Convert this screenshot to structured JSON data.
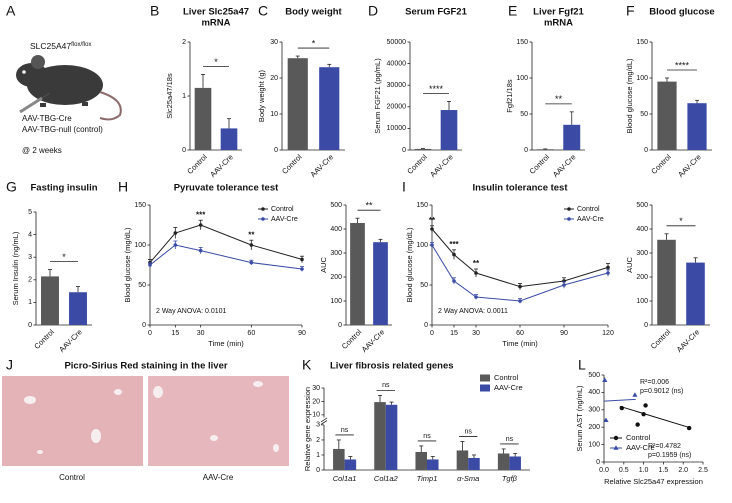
{
  "schematic": {
    "panel": "A",
    "strain": "SLC25A47",
    "strain_sup": "flox/flox",
    "treatments": [
      "AAV-TBG-Cre",
      "AAV-TBG-null (control)"
    ],
    "timepoint": "@ 2 weeks"
  },
  "histology": {
    "panel": "J",
    "title": "Picro-Sirius Red staining in the liver",
    "images": [
      "Control",
      "AAV-Cre"
    ]
  },
  "chart_data": [
    {
      "type": "bar",
      "panel": "B",
      "title": [
        "Liver Slc25a47",
        "mRNA"
      ],
      "ylabel": "Slc25a47/18s",
      "categories": [
        "Control",
        "AAV-Cre"
      ],
      "values": [
        1.15,
        0.4
      ],
      "errors": [
        0.25,
        0.18
      ],
      "colors": [
        "#595959",
        "#3b4ba5"
      ],
      "ylim": [
        0,
        2
      ],
      "yticks": [
        0,
        1,
        2
      ],
      "significance": "*"
    },
    {
      "type": "bar",
      "panel": "C",
      "title": [
        "Body weight"
      ],
      "ylabel": "Body weight (g)",
      "categories": [
        "Control",
        "AAV-Cre"
      ],
      "values": [
        25.5,
        23
      ],
      "errors": [
        0.6,
        0.8
      ],
      "colors": [
        "#595959",
        "#3b4ba5"
      ],
      "ylim": [
        0,
        30
      ],
      "yticks": [
        0,
        10,
        20,
        30
      ],
      "significance": "*"
    },
    {
      "type": "bar",
      "panel": "D",
      "title": [
        "Serum FGF21"
      ],
      "ylabel": "Serum FGF21 (pg/mL)",
      "categories": [
        "Control",
        "AAV-Cre"
      ],
      "values": [
        500,
        18500
      ],
      "errors": [
        150,
        4000
      ],
      "colors": [
        "#595959",
        "#3b4ba5"
      ],
      "ylim": [
        0,
        50000
      ],
      "yticks": [
        0,
        10000,
        20000,
        30000,
        40000,
        50000
      ],
      "significance": "****"
    },
    {
      "type": "bar",
      "panel": "E",
      "title": [
        "Liver Fgf21",
        "mRNA"
      ],
      "ylabel": "Fgf21/18s",
      "categories": [
        "Control",
        "AAV-Cre"
      ],
      "values": [
        1,
        35
      ],
      "errors": [
        0.5,
        18
      ],
      "colors": [
        "#595959",
        "#3b4ba5"
      ],
      "ylim": [
        0,
        150
      ],
      "yticks": [
        0,
        50,
        100,
        150
      ],
      "significance": "**"
    },
    {
      "type": "bar",
      "panel": "F",
      "title": [
        "Blood glucose"
      ],
      "ylabel": "Blood glucose (mg/dL)",
      "categories": [
        "Control",
        "AAV-Cre"
      ],
      "values": [
        95,
        65
      ],
      "errors": [
        5,
        4
      ],
      "colors": [
        "#595959",
        "#3b4ba5"
      ],
      "ylim": [
        0,
        150
      ],
      "yticks": [
        0,
        50,
        100,
        150
      ],
      "significance": "****"
    },
    {
      "type": "bar",
      "panel": "G",
      "title": [
        "Fasting insulin"
      ],
      "ylabel": "Serum Insulin (ng/mL)",
      "categories": [
        "Control",
        "AAV-Cre"
      ],
      "values": [
        2.15,
        1.45
      ],
      "errors": [
        0.3,
        0.25
      ],
      "colors": [
        "#595959",
        "#3b4ba5"
      ],
      "ylim": [
        0,
        5
      ],
      "yticks": [
        0,
        1,
        2,
        3,
        4,
        5
      ],
      "significance": "*"
    },
    {
      "type": "line",
      "panel": "H",
      "title": [
        "Pyruvate tolerance test"
      ],
      "xlabel": "Time (min)",
      "ylabel": "Blood glucose (mg/dL)",
      "x": [
        0,
        15,
        30,
        60,
        90
      ],
      "xlim": [
        0,
        90
      ],
      "xticks": [
        0,
        15,
        30,
        60,
        90
      ],
      "ylim": [
        0,
        150
      ],
      "yticks": [
        0,
        50,
        100,
        150
      ],
      "series": [
        {
          "name": "Control",
          "color": "#222222",
          "values": [
            78,
            115,
            125,
            100,
            82
          ],
          "errors": [
            4,
            7,
            6,
            6,
            4
          ]
        },
        {
          "name": "AAV-Cre",
          "color": "#3b4ba5",
          "values": [
            75,
            100,
            93,
            78,
            70
          ],
          "errors": [
            3,
            5,
            4,
            3,
            3
          ]
        }
      ],
      "significance": [
        null,
        null,
        "***",
        "**",
        null
      ],
      "anova": "2 Way ANOVA: 0.0101"
    },
    {
      "type": "bar",
      "ylabel": "AUC",
      "categories": [
        "Control",
        "AAV-Cre"
      ],
      "values": [
        425,
        345
      ],
      "errors": [
        20,
        12
      ],
      "colors": [
        "#595959",
        "#3b4ba5"
      ],
      "ylim": [
        0,
        500
      ],
      "yticks": [
        0,
        100,
        200,
        300,
        400,
        500
      ],
      "significance": "**"
    },
    {
      "type": "line",
      "panel": "I",
      "title": [
        "Insulin tolerance test"
      ],
      "xlabel": "Time (min)",
      "ylabel": "Blood glucose (mg/dL)",
      "x": [
        0,
        15,
        30,
        60,
        90,
        120
      ],
      "xlim": [
        0,
        120
      ],
      "xticks": [
        0,
        15,
        30,
        60,
        90,
        120
      ],
      "ylim": [
        0,
        150
      ],
      "yticks": [
        0,
        50,
        100,
        150
      ],
      "series": [
        {
          "name": "Control",
          "color": "#222222",
          "values": [
            120,
            88,
            65,
            48,
            55,
            72
          ],
          "errors": [
            4,
            6,
            5,
            4,
            4,
            5
          ]
        },
        {
          "name": "AAV-Cre",
          "color": "#3b4ba5",
          "values": [
            100,
            55,
            35,
            30,
            50,
            65
          ],
          "errors": [
            3,
            4,
            3,
            3,
            4,
            4
          ]
        }
      ],
      "significance": [
        "**",
        "***",
        "**",
        null,
        null,
        null
      ],
      "anova": "2 Way ANOVA: 0.0011"
    },
    {
      "type": "bar",
      "ylabel": "AUC",
      "categories": [
        "Control",
        "AAV-Cre"
      ],
      "values": [
        355,
        260
      ],
      "errors": [
        25,
        20
      ],
      "colors": [
        "#595959",
        "#3b4ba5"
      ],
      "ylim": [
        0,
        500
      ],
      "yticks": [
        0,
        100,
        200,
        300,
        400,
        500
      ],
      "significance": "*"
    },
    {
      "type": "grouped_bar",
      "panel": "K",
      "title": [
        "Liver fibrosis related genes"
      ],
      "ylabel": "Relative gene expression",
      "categories": [
        "Col1a1",
        "Col1a2",
        "Timp1",
        "α-Sma",
        "Tgfβ"
      ],
      "series": [
        {
          "name": "Control",
          "color": "#595959",
          "values": [
            1.4,
            19.5,
            1.2,
            1.3,
            1.1
          ],
          "errors": [
            0.6,
            5,
            0.4,
            0.6,
            0.3
          ]
        },
        {
          "name": "AAV-Cre",
          "color": "#3b4ba5",
          "values": [
            0.7,
            17.5,
            0.7,
            0.8,
            0.9
          ],
          "errors": [
            0.2,
            2,
            0.2,
            0.2,
            0.2
          ]
        }
      ],
      "ylim": [
        0,
        3
      ],
      "yticks": [
        0,
        1,
        2,
        3
      ],
      "ylim_upper": [
        8,
        30
      ],
      "yticks_upper": [
        10,
        20,
        30
      ],
      "axis_break": true,
      "significance": [
        "ns",
        "ns",
        "ns",
        "ns",
        "ns"
      ]
    },
    {
      "type": "scatter",
      "panel": "L",
      "xlabel": "Relative Slc25a47 expression",
      "ylabel": "Serum AST (ng/mL)",
      "xlim": [
        0,
        2.5
      ],
      "xticks": [
        {
          "value": 0,
          "label": "0.0"
        },
        0.5,
        {
          "value": 1,
          "label": "1.0"
        },
        1.5,
        {
          "value": 2,
          "label": "2.0"
        },
        2.5
      ],
      "ylim": [
        0,
        500
      ],
      "yticks": [
        0,
        100,
        200,
        300,
        400,
        500
      ],
      "legend": "lower left",
      "series": [
        {
          "name": "Control",
          "color": "#111111",
          "marker": "circle",
          "x": [
            0.45,
            0.85,
            1.0,
            1.05,
            2.15
          ],
          "values": [
            310,
            215,
            275,
            325,
            195
          ],
          "trend": {
            "x": [
              0.4,
              2.2
            ],
            "y": [
              320,
              195
            ]
          },
          "stats": [
            "R²=0.4782",
            "p=0.1959 (ns)"
          ]
        },
        {
          "name": "AAV-Cre",
          "color": "#3b4ba5",
          "marker": "triangle",
          "x": [
            0.02,
            0.05,
            0.78
          ],
          "values": [
            470,
            240,
            385
          ],
          "trend": {
            "x": [
              0,
              0.8
            ],
            "y": [
              350,
              360
            ]
          },
          "stats": [
            "R²=0.006",
            "p=0.9012 (ns)"
          ]
        }
      ]
    }
  ]
}
